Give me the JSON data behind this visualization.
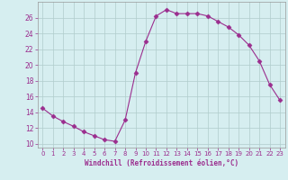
{
  "x": [
    0,
    1,
    2,
    3,
    4,
    5,
    6,
    7,
    8,
    9,
    10,
    11,
    12,
    13,
    14,
    15,
    16,
    17,
    18,
    19,
    20,
    21,
    22,
    23
  ],
  "y": [
    14.5,
    13.5,
    12.8,
    12.2,
    11.5,
    11.0,
    10.5,
    10.3,
    13.0,
    19.0,
    23.0,
    26.2,
    27.0,
    26.5,
    26.5,
    26.5,
    26.2,
    25.5,
    24.8,
    23.8,
    22.5,
    20.5,
    17.5,
    15.5
  ],
  "line_color": "#9b2d8e",
  "marker": "D",
  "marker_size": 2.5,
  "bg_color": "#d6eef0",
  "grid_color": "#b0cccc",
  "xlabel": "Windchill (Refroidissement éolien,°C)",
  "xlabel_color": "#9b2d8e",
  "tick_color": "#9b2d8e",
  "ylim": [
    9.5,
    28
  ],
  "yticks": [
    10,
    12,
    14,
    16,
    18,
    20,
    22,
    24,
    26
  ],
  "xlim": [
    -0.5,
    23.5
  ],
  "xticks": [
    0,
    1,
    2,
    3,
    4,
    5,
    6,
    7,
    8,
    9,
    10,
    11,
    12,
    13,
    14,
    15,
    16,
    17,
    18,
    19,
    20,
    21,
    22,
    23
  ]
}
